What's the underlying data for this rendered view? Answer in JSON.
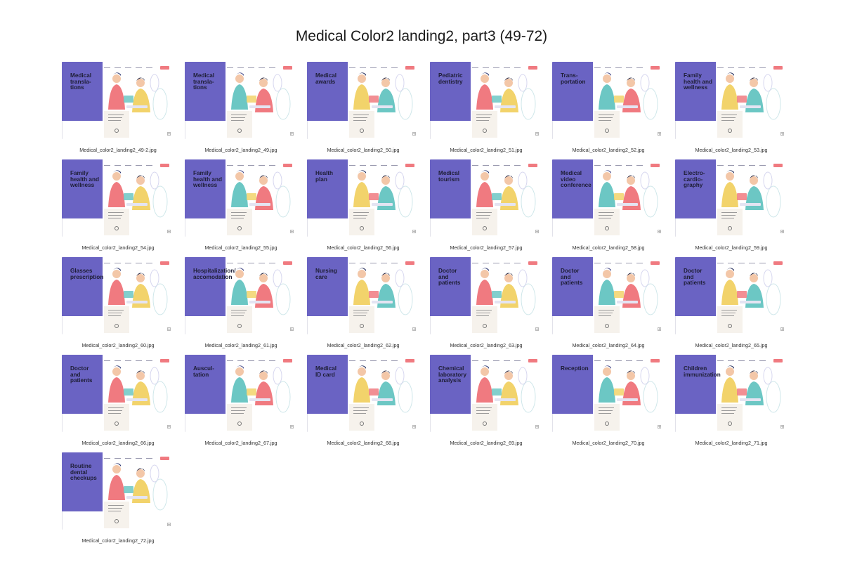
{
  "page_title": "Medical Color2 landing2, part3 (49-72)",
  "cards": [
    {
      "heading": [
        "Medical",
        "transla-",
        "tions"
      ],
      "caption": "Medical_color2_landing2_49-2.jpg"
    },
    {
      "heading": [
        "Medical",
        "transla-",
        "tions"
      ],
      "caption": "Medical_color2_landing2_49.jpg"
    },
    {
      "heading": [
        "Medical",
        "awards"
      ],
      "caption": "Medical_color2_landing2_50.jpg"
    },
    {
      "heading": [
        "Pediatric",
        "dentistry"
      ],
      "caption": "Medical_color2_landing2_51.jpg"
    },
    {
      "heading": [
        "Trans-",
        "portation"
      ],
      "caption": "Medical_color2_landing2_52.jpg"
    },
    {
      "heading": [
        "Family",
        "health and",
        "wellness"
      ],
      "caption": "Medical_color2_landing2_53.jpg"
    },
    {
      "heading": [
        "Family",
        "health and",
        "wellness"
      ],
      "caption": "Medical_color2_landing2_54.jpg"
    },
    {
      "heading": [
        "Family",
        "health and",
        "wellness"
      ],
      "caption": "Medical_color2_landing2_55.jpg"
    },
    {
      "heading": [
        "Health",
        "plan"
      ],
      "caption": "Medical_color2_landing2_56.jpg"
    },
    {
      "heading": [
        "Medical",
        "tourism"
      ],
      "caption": "Medical_color2_landing2_57.jpg"
    },
    {
      "heading": [
        "Medical",
        "video",
        "conference"
      ],
      "caption": "Medical_color2_landing2_58.jpg"
    },
    {
      "heading": [
        "Electro-",
        "cardio-",
        "graphy"
      ],
      "caption": "Medical_color2_landing2_59.jpg"
    },
    {
      "heading": [
        "Glasses",
        "prescription"
      ],
      "caption": "Medical_color2_landing2_60.jpg"
    },
    {
      "heading": [
        "Hospitalization/",
        "accomodation"
      ],
      "caption": "Medical_color2_landing2_61.jpg"
    },
    {
      "heading": [
        "Nursing",
        "care"
      ],
      "caption": "Medical_color2_landing2_62.jpg"
    },
    {
      "heading": [
        "Doctor",
        "and",
        "patients"
      ],
      "caption": "Medical_color2_landing2_63.jpg"
    },
    {
      "heading": [
        "Doctor",
        "and",
        "patients"
      ],
      "caption": "Medical_color2_landing2_64.jpg"
    },
    {
      "heading": [
        "Doctor",
        "and",
        "patients"
      ],
      "caption": "Medical_color2_landing2_65.jpg"
    },
    {
      "heading": [
        "Doctor",
        "and",
        "patients"
      ],
      "caption": "Medical_color2_landing2_66.jpg"
    },
    {
      "heading": [
        "Auscul-",
        "tation"
      ],
      "caption": "Medical_color2_landing2_67.jpg"
    },
    {
      "heading": [
        "Medical",
        "ID card"
      ],
      "caption": "Medical_color2_landing2_68.jpg"
    },
    {
      "heading": [
        "Chemical",
        "laboratory",
        "analysis"
      ],
      "caption": "Medical_color2_landing2_69.jpg"
    },
    {
      "heading": [
        "Reception"
      ],
      "caption": "Medical_color2_landing2_70.jpg"
    },
    {
      "heading": [
        "Children",
        "immunization"
      ],
      "caption": "Medical_color2_landing2_71.jpg"
    },
    {
      "heading": [
        "Routine",
        "dental",
        "checkups"
      ],
      "caption": "Medical_color2_landing2_72.jpg"
    }
  ],
  "colors": {
    "panel_purple": "#6a63c3",
    "accent_coral": "#f07a80",
    "accent_yellow": "#f2d36b",
    "accent_teal": "#6cc7c4",
    "paper": "#f6f2ec"
  }
}
